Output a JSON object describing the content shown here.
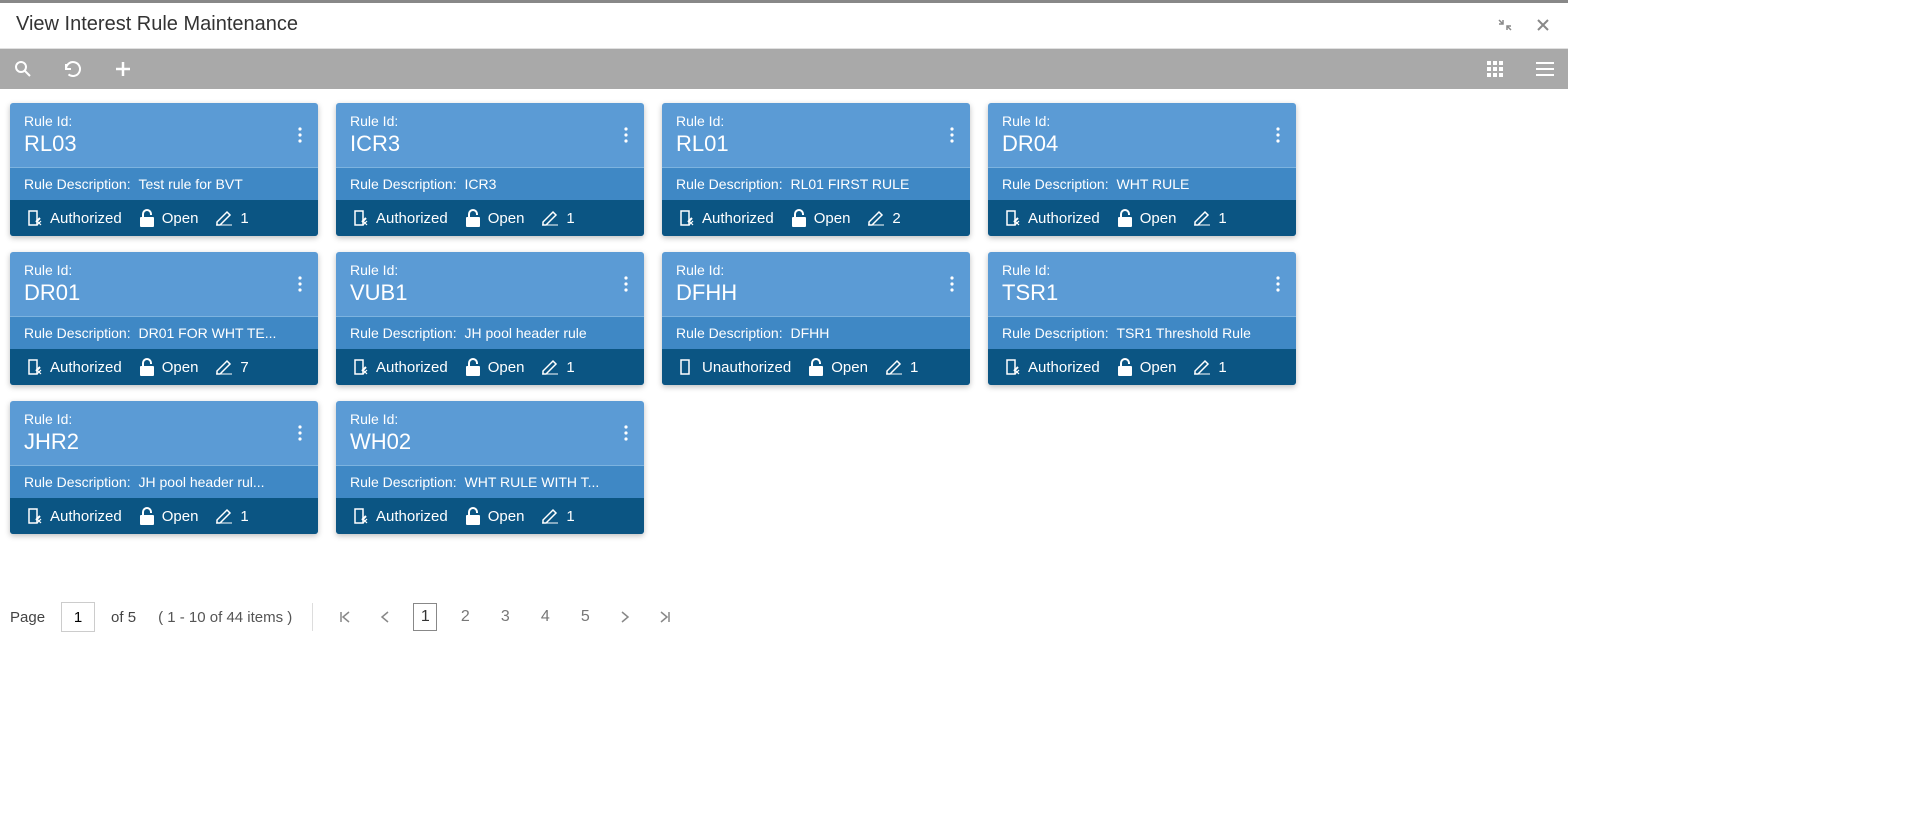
{
  "header": {
    "title": "View Interest Rule Maintenance"
  },
  "labels": {
    "rule_id": "Rule Id:",
    "rule_desc": "Rule Description:",
    "authorized": "Authorized",
    "unauthorized": "Unauthorized",
    "open": "Open"
  },
  "cards": [
    {
      "id": "RL03",
      "desc": "Test rule for BVT",
      "auth": true,
      "open": true,
      "count": "1"
    },
    {
      "id": "ICR3",
      "desc": "ICR3",
      "auth": true,
      "open": true,
      "count": "1"
    },
    {
      "id": "RL01",
      "desc": "RL01 FIRST RULE",
      "auth": true,
      "open": true,
      "count": "2"
    },
    {
      "id": "DR04",
      "desc": "WHT RULE",
      "auth": true,
      "open": true,
      "count": "1"
    },
    {
      "id": "DR01",
      "desc": "DR01 FOR WHT TE...",
      "auth": true,
      "open": true,
      "count": "7"
    },
    {
      "id": "VUB1",
      "desc": "JH pool header rule",
      "auth": true,
      "open": true,
      "count": "1"
    },
    {
      "id": "DFHH",
      "desc": "DFHH",
      "auth": false,
      "open": true,
      "count": "1"
    },
    {
      "id": "TSR1",
      "desc": "TSR1 Threshold Rule",
      "auth": true,
      "open": true,
      "count": "1"
    },
    {
      "id": "JHR2",
      "desc": "JH pool header rul...",
      "auth": true,
      "open": true,
      "count": "1"
    },
    {
      "id": "WH02",
      "desc": "WHT RULE WITH T...",
      "auth": true,
      "open": true,
      "count": "1"
    }
  ],
  "pagination": {
    "page_label": "Page",
    "current": "1",
    "of_label": "of 5",
    "range": "( 1 - 10 of 44 items )",
    "pages": [
      "1",
      "2",
      "3",
      "4",
      "5"
    ]
  }
}
